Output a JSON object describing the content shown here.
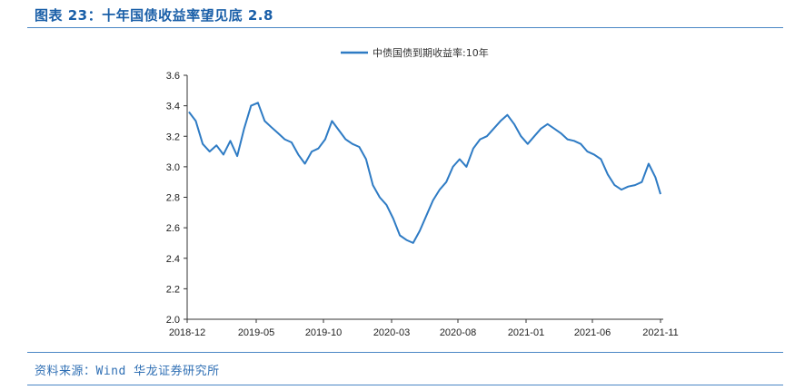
{
  "header": {
    "title": "图表 23：十年国债收益率望见底 2.8"
  },
  "footer": {
    "source": "资料来源：Wind 华龙证券研究所"
  },
  "chart_data": {
    "type": "line",
    "title": "",
    "xlabel": "",
    "ylabel": "",
    "ylim": [
      2.0,
      3.6
    ],
    "yticks": [
      "2.0",
      "2.2",
      "2.4",
      "2.6",
      "2.8",
      "3.0",
      "3.2",
      "3.4",
      "3.6"
    ],
    "xticks": [
      "2018-12",
      "2019-05",
      "2019-10",
      "2020-03",
      "2020-08",
      "2021-01",
      "2021-06",
      "2021-11"
    ],
    "legend": "top-center",
    "grid": false,
    "color": "#2e7bc4",
    "series": [
      {
        "name": "中债国债到期收益率:10年",
        "x": [
          "2018-12",
          "2018-12",
          "2019-01",
          "2019-01",
          "2019-02",
          "2019-02",
          "2019-03",
          "2019-03",
          "2019-04",
          "2019-04",
          "2019-05",
          "2019-05",
          "2019-06",
          "2019-06",
          "2019-07",
          "2019-07",
          "2019-08",
          "2019-08",
          "2019-09",
          "2019-09",
          "2019-10",
          "2019-10",
          "2019-11",
          "2019-11",
          "2019-12",
          "2019-12",
          "2020-01",
          "2020-01",
          "2020-02",
          "2020-02",
          "2020-03",
          "2020-03",
          "2020-04",
          "2020-04",
          "2020-05",
          "2020-05",
          "2020-06",
          "2020-06",
          "2020-07",
          "2020-07",
          "2020-08",
          "2020-08",
          "2020-09",
          "2020-09",
          "2020-10",
          "2020-10",
          "2020-11",
          "2020-11",
          "2020-12",
          "2020-12",
          "2021-01",
          "2021-01",
          "2021-02",
          "2021-02",
          "2021-03",
          "2021-03",
          "2021-04",
          "2021-04",
          "2021-05",
          "2021-05",
          "2021-06",
          "2021-06",
          "2021-07",
          "2021-07",
          "2021-08",
          "2021-08",
          "2021-09",
          "2021-09",
          "2021-10",
          "2021-10",
          "2021-11"
        ],
        "values": [
          3.36,
          3.3,
          3.15,
          3.1,
          3.14,
          3.08,
          3.17,
          3.07,
          3.25,
          3.4,
          3.42,
          3.3,
          3.26,
          3.22,
          3.18,
          3.16,
          3.08,
          3.02,
          3.1,
          3.12,
          3.18,
          3.3,
          3.24,
          3.18,
          3.15,
          3.13,
          3.05,
          2.88,
          2.8,
          2.75,
          2.66,
          2.55,
          2.52,
          2.5,
          2.58,
          2.68,
          2.78,
          2.85,
          2.9,
          3.0,
          3.05,
          3.0,
          3.12,
          3.18,
          3.2,
          3.25,
          3.3,
          3.34,
          3.28,
          3.2,
          3.15,
          3.2,
          3.25,
          3.28,
          3.25,
          3.22,
          3.18,
          3.17,
          3.15,
          3.1,
          3.08,
          3.05,
          2.95,
          2.88,
          2.85,
          2.87,
          2.88,
          2.9,
          3.02,
          2.93,
          2.82
        ]
      }
    ]
  }
}
